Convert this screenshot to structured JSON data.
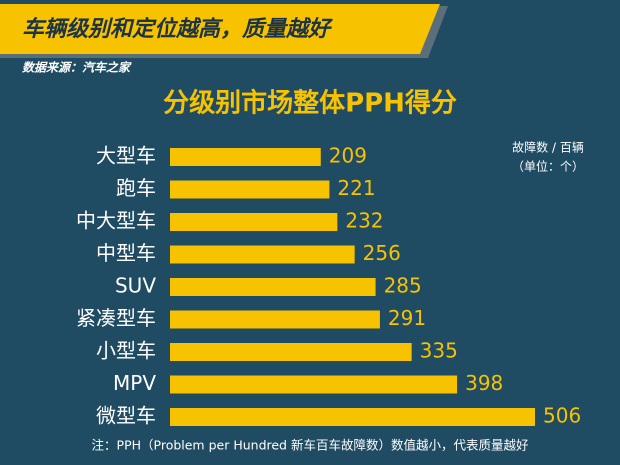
{
  "chart_data": {
    "type": "bar",
    "headline": "车辆级别和定位越高，质量越好",
    "source": "数据来源：汽车之家",
    "title": "分级别市场整体PPH得分",
    "unit_label": [
      "故障数 / 百辆",
      "（单位：个）"
    ],
    "categories": [
      "大型车",
      "跑车",
      "中大型车",
      "中型车",
      "SUV",
      "紧凑型车",
      "小型车",
      "MPV",
      "微型车"
    ],
    "values": [
      209,
      221,
      232,
      256,
      285,
      291,
      335,
      398,
      506
    ],
    "color": "#f7c200",
    "note": "注：PPH（Problem per Hundred 新车百车故障数）数值越小，代表质量越好"
  }
}
